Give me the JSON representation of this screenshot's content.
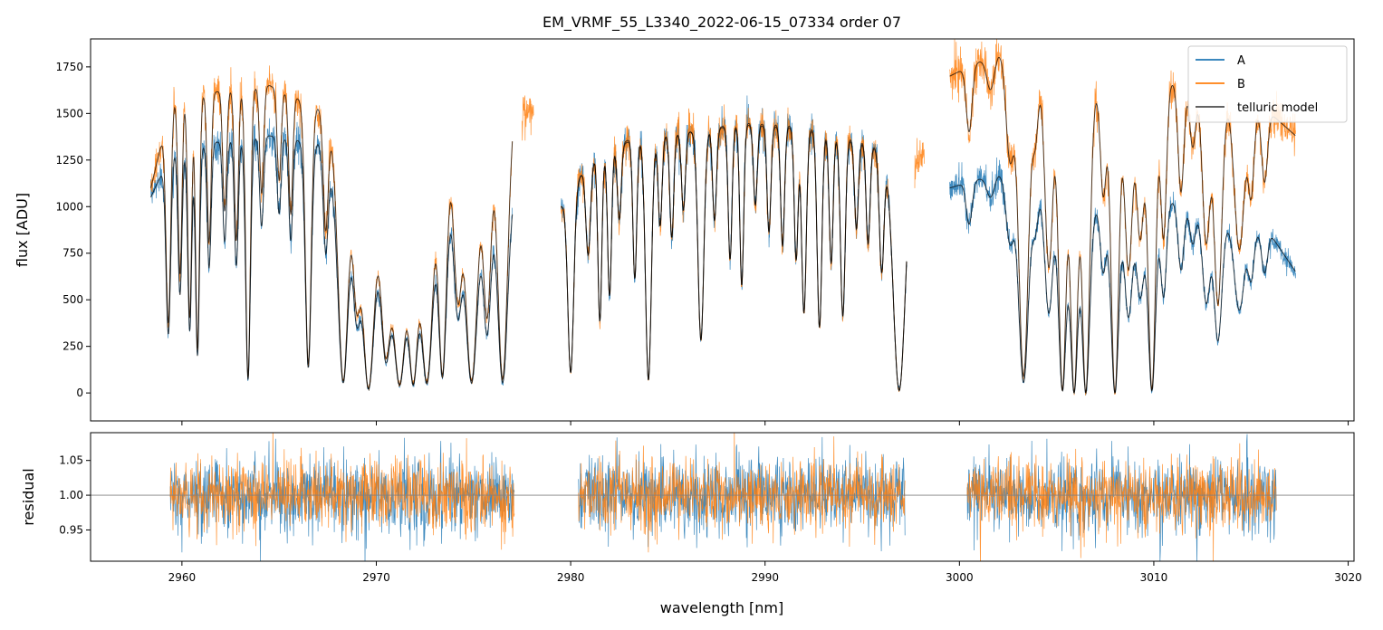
{
  "chart_data": [
    {
      "type": "line",
      "panel": "top",
      "title": "EM_VRMF_55_L3340_2022-06-15_07334  order 07",
      "xlabel": "",
      "ylabel": "flux [ADU]",
      "xlim": [
        2955.3,
        3020.3
      ],
      "ylim": [
        -150,
        1900
      ],
      "yticks": [
        0,
        250,
        500,
        750,
        1000,
        1250,
        1500,
        1750
      ],
      "ytick_labels": [
        "0",
        "250",
        "500",
        "750",
        "1000",
        "1250",
        "1500",
        "1750"
      ],
      "xticks": [
        2960,
        2970,
        2980,
        2990,
        3000,
        3010,
        3020
      ],
      "legend": {
        "placement": "top-right",
        "entries": [
          "A",
          "B",
          "telluric model"
        ]
      },
      "segments": [
        {
          "x_range": [
            2958.4,
            2977.0
          ],
          "A_continuum": [
            [
              2958.4,
              1050
            ],
            [
              2959.5,
              1300
            ],
            [
              2962,
              1350
            ],
            [
              2964.5,
              1380
            ],
            [
              2967,
              1340
            ],
            [
              2968,
              1100
            ],
            [
              2969.5,
              1000
            ],
            [
              2971,
              800
            ],
            [
              2973,
              1050
            ],
            [
              2975,
              1050
            ],
            [
              2977,
              1100
            ]
          ],
          "B_continuum": [
            [
              2958.4,
              1100
            ],
            [
              2959.5,
              1580
            ],
            [
              2962,
              1620
            ],
            [
              2964.5,
              1650
            ],
            [
              2967,
              1530
            ],
            [
              2968,
              1330
            ],
            [
              2969.5,
              1180
            ],
            [
              2971,
              900
            ],
            [
              2973,
              1250
            ],
            [
              2975,
              1280
            ],
            [
              2977,
              1550
            ]
          ],
          "lines": [
            [
              2959.3,
              0.75,
              0.12
            ],
            [
              2959.9,
              0.6,
              0.1
            ],
            [
              2960.4,
              0.75,
              0.1
            ],
            [
              2960.8,
              0.85,
              0.1
            ],
            [
              2961.4,
              0.5,
              0.1
            ],
            [
              2962.2,
              0.4,
              0.1
            ],
            [
              2962.8,
              0.5,
              0.1
            ],
            [
              2963.4,
              0.95,
              0.12
            ],
            [
              2964.1,
              0.35,
              0.1
            ],
            [
              2965.0,
              0.3,
              0.1
            ],
            [
              2965.6,
              0.4,
              0.1
            ],
            [
              2966.5,
              0.9,
              0.15
            ],
            [
              2967.4,
              0.4,
              0.12
            ],
            [
              2968.3,
              0.95,
              0.25
            ],
            [
              2969.0,
              0.6,
              0.2
            ],
            [
              2969.6,
              0.98,
              0.3
            ],
            [
              2970.5,
              0.8,
              0.25
            ],
            [
              2971.2,
              0.95,
              0.3
            ],
            [
              2971.9,
              0.95,
              0.25
            ],
            [
              2972.6,
              0.95,
              0.3
            ],
            [
              2973.4,
              0.92,
              0.2
            ],
            [
              2974.2,
              0.6,
              0.2
            ],
            [
              2974.9,
              0.95,
              0.3
            ],
            [
              2975.7,
              0.7,
              0.2
            ],
            [
              2976.5,
              0.95,
              0.25
            ]
          ]
        },
        {
          "x_range": [
            2977.5,
            2978.1
          ],
          "B_continuum": [
            [
              2977.5,
              1500
            ],
            [
              2978.1,
              1520
            ]
          ],
          "lines": []
        },
        {
          "x_range": [
            2979.5,
            2997.3
          ],
          "A_continuum": [
            [
              2979.5,
              1000
            ],
            [
              2981,
              1250
            ],
            [
              2983,
              1350
            ],
            [
              2986,
              1400
            ],
            [
              2989,
              1450
            ],
            [
              2992,
              1430
            ],
            [
              2995,
              1350
            ],
            [
              2997.3,
              1250
            ]
          ],
          "B_continuum": [
            [
              2979.5,
              1000
            ],
            [
              2981,
              1250
            ],
            [
              2983,
              1360
            ],
            [
              2986,
              1400
            ],
            [
              2989,
              1440
            ],
            [
              2992,
              1420
            ],
            [
              2995,
              1340
            ],
            [
              2997.3,
              1250
            ]
          ],
          "lines": [
            [
              2980.0,
              0.9,
              0.15
            ],
            [
              2980.9,
              0.4,
              0.12
            ],
            [
              2981.5,
              0.7,
              0.1
            ],
            [
              2982.0,
              0.6,
              0.1
            ],
            [
              2982.5,
              0.3,
              0.1
            ],
            [
              2983.3,
              0.55,
              0.1
            ],
            [
              2984.0,
              0.95,
              0.15
            ],
            [
              2984.6,
              0.35,
              0.1
            ],
            [
              2985.2,
              0.4,
              0.1
            ],
            [
              2985.8,
              0.3,
              0.1
            ],
            [
              2986.7,
              0.8,
              0.15
            ],
            [
              2987.4,
              0.35,
              0.1
            ],
            [
              2988.2,
              0.5,
              0.1
            ],
            [
              2988.8,
              0.6,
              0.1
            ],
            [
              2989.5,
              0.3,
              0.1
            ],
            [
              2990.2,
              0.4,
              0.1
            ],
            [
              2990.9,
              0.45,
              0.1
            ],
            [
              2991.6,
              0.5,
              0.1
            ],
            [
              2992.0,
              0.7,
              0.12
            ],
            [
              2992.8,
              0.75,
              0.12
            ],
            [
              2993.4,
              0.5,
              0.1
            ],
            [
              2994.0,
              0.7,
              0.12
            ],
            [
              2994.7,
              0.35,
              0.1
            ],
            [
              2995.3,
              0.4,
              0.1
            ],
            [
              2996.0,
              0.5,
              0.12
            ],
            [
              2996.9,
              0.99,
              0.3
            ]
          ]
        },
        {
          "x_range": [
            2997.7,
            2998.2
          ],
          "B_continuum": [
            [
              2997.7,
              1230
            ],
            [
              2998.2,
              1300
            ]
          ],
          "lines": []
        },
        {
          "x_range": [
            2999.5,
            3017.3
          ],
          "A_continuum": [
            [
              2999.5,
              1100
            ],
            [
              3002,
              1180
            ],
            [
              3004,
              1100
            ],
            [
              3006,
              1000
            ],
            [
              3008,
              1000
            ],
            [
              3010,
              1050
            ],
            [
              3012,
              1000
            ],
            [
              3014,
              900
            ],
            [
              3016,
              850
            ],
            [
              3017.3,
              650
            ]
          ],
          "B_continuum": [
            [
              2999.5,
              1700
            ],
            [
              3002,
              1830
            ],
            [
              3004,
              1720
            ],
            [
              3006,
              1600
            ],
            [
              3008,
              1650
            ],
            [
              3010,
              1680
            ],
            [
              3012,
              1650
            ],
            [
              3014,
              1550
            ],
            [
              3016,
              1500
            ],
            [
              3017.3,
              1380
            ]
          ],
          "lines": [
            [
              3000.5,
              0.2,
              0.15
            ],
            [
              3001.6,
              0.1,
              0.2
            ],
            [
              3002.6,
              0.3,
              0.2
            ],
            [
              3003.3,
              0.95,
              0.25
            ],
            [
              3003.9,
              0.2,
              0.15
            ],
            [
              3004.6,
              0.6,
              0.2
            ],
            [
              3005.3,
              0.99,
              0.2
            ],
            [
              3005.9,
              1.0,
              0.2
            ],
            [
              3006.5,
              1.0,
              0.2
            ],
            [
              3007.4,
              0.35,
              0.15
            ],
            [
              3008.0,
              1.0,
              0.2
            ],
            [
              3008.7,
              0.6,
              0.2
            ],
            [
              3009.3,
              0.5,
              0.2
            ],
            [
              3009.9,
              0.99,
              0.2
            ],
            [
              3010.5,
              0.5,
              0.15
            ],
            [
              3011.4,
              0.35,
              0.15
            ],
            [
              3012.0,
              0.2,
              0.15
            ],
            [
              3012.7,
              0.5,
              0.2
            ],
            [
              3013.3,
              0.7,
              0.2
            ],
            [
              3014.4,
              0.5,
              0.25
            ],
            [
              3015.0,
              0.3,
              0.15
            ],
            [
              3015.7,
              0.25,
              0.15
            ]
          ]
        }
      ]
    },
    {
      "type": "line",
      "panel": "bottom",
      "title": "",
      "xlabel": "wavelength [nm]",
      "ylabel": "residual",
      "xlim": [
        2955.3,
        3020.3
      ],
      "ylim": [
        0.905,
        1.09
      ],
      "yticks": [
        0.95,
        1.0,
        1.05
      ],
      "ytick_labels": [
        "0.95",
        "1.00",
        "1.05"
      ],
      "xticks": [
        2960,
        2970,
        2980,
        2990,
        3000,
        3010,
        3020
      ],
      "xtick_labels": [
        "2960",
        "2970",
        "2980",
        "2990",
        "3000",
        "3010",
        "3020"
      ],
      "reference_line": 1.0,
      "segments": [
        [
          2959.4,
          2977.1
        ],
        [
          2980.4,
          2997.2
        ],
        [
          3000.4,
          3016.3
        ]
      ],
      "noise_sigma": {
        "A": 0.028,
        "B": 0.025
      }
    }
  ],
  "legend": {
    "entries": [
      "A",
      "B",
      "telluric model"
    ]
  },
  "colors": {
    "A": "#1f77b4",
    "B": "#ff7f0e",
    "model": "#000000",
    "reference": "#808080"
  }
}
